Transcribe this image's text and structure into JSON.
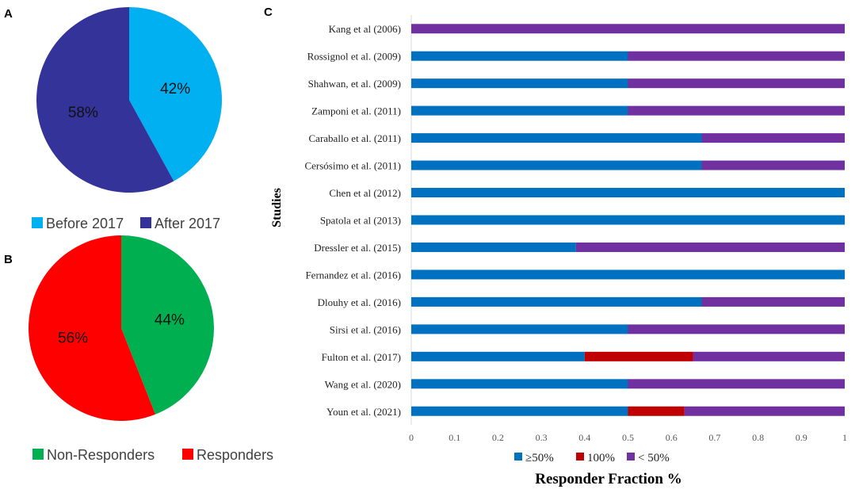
{
  "panels": {
    "a": {
      "letter": "A",
      "chart_data": {
        "type": "pie",
        "slices": [
          {
            "label": "Before 2017",
            "value": 42,
            "pct_label": "42%",
            "color": "#00B0F0"
          },
          {
            "label": "After 2017",
            "value": 58,
            "pct_label": "58%",
            "color": "#333399"
          }
        ],
        "legend": [
          "Before 2017",
          "After 2017"
        ]
      }
    },
    "b": {
      "letter": "B",
      "chart_data": {
        "type": "pie",
        "slices": [
          {
            "label": "Non-Responders",
            "value": 44,
            "pct_label": "44%",
            "color": "#00B050"
          },
          {
            "label": "Responders",
            "value": 56,
            "pct_label": "56%",
            "color": "#FF0000"
          }
        ],
        "legend": [
          "Non-Responders",
          "Responders"
        ]
      }
    },
    "c": {
      "letter": "C",
      "chart_data": {
        "type": "bar",
        "orientation": "horizontal",
        "stacked": true,
        "xlabel": "Responder Fraction %",
        "ylabel": "Studies",
        "xlim": [
          0,
          1
        ],
        "xticks": [
          "0",
          "0.1",
          "0.2",
          "0.3",
          "0.4",
          "0.5",
          "0.6",
          "0.7",
          "0.8",
          "0.9",
          "1"
        ],
        "categories": [
          "Kang et al (2006)",
          "Rossignol et al. (2009)",
          "Shahwan, et al. (2009)",
          "Zamponi et al. (2011)",
          "Caraballo et al. (2011)",
          "Cersósimo et al. (2011)",
          "Chen et al (2012)",
          "Spatola et al (2013)",
          "Dressler et al. (2015)",
          "Fernandez et al. (2016)",
          "Dlouhy et al. (2016)",
          "Sirsi et al. (2016)",
          "Fulton et al. (2017)",
          "Wang et al. (2020)",
          "Youn et al. (2021)"
        ],
        "series": [
          {
            "name": "≥50%",
            "color": "#0070C0",
            "values": [
              0,
              0.5,
              0.5,
              0.5,
              0.67,
              0.67,
              1,
              1,
              0.38,
              1,
              0.67,
              0.5,
              0.4,
              0.5,
              0.5
            ]
          },
          {
            "name": "100%",
            "color": "#C00000",
            "values": [
              0,
              0,
              0,
              0,
              0,
              0,
              0,
              0,
              0,
              0,
              0,
              0,
              0.25,
              0,
              0.13
            ]
          },
          {
            "name": "< 50%",
            "color": "#7030A0",
            "values": [
              1,
              0.5,
              0.5,
              0.5,
              0.33,
              0.33,
              0,
              0,
              0.62,
              0,
              0.33,
              0.5,
              0.35,
              0.5,
              0.37
            ]
          }
        ],
        "legend": [
          "≥50%",
          "100%",
          "< 50%"
        ],
        "grid": false
      }
    }
  }
}
